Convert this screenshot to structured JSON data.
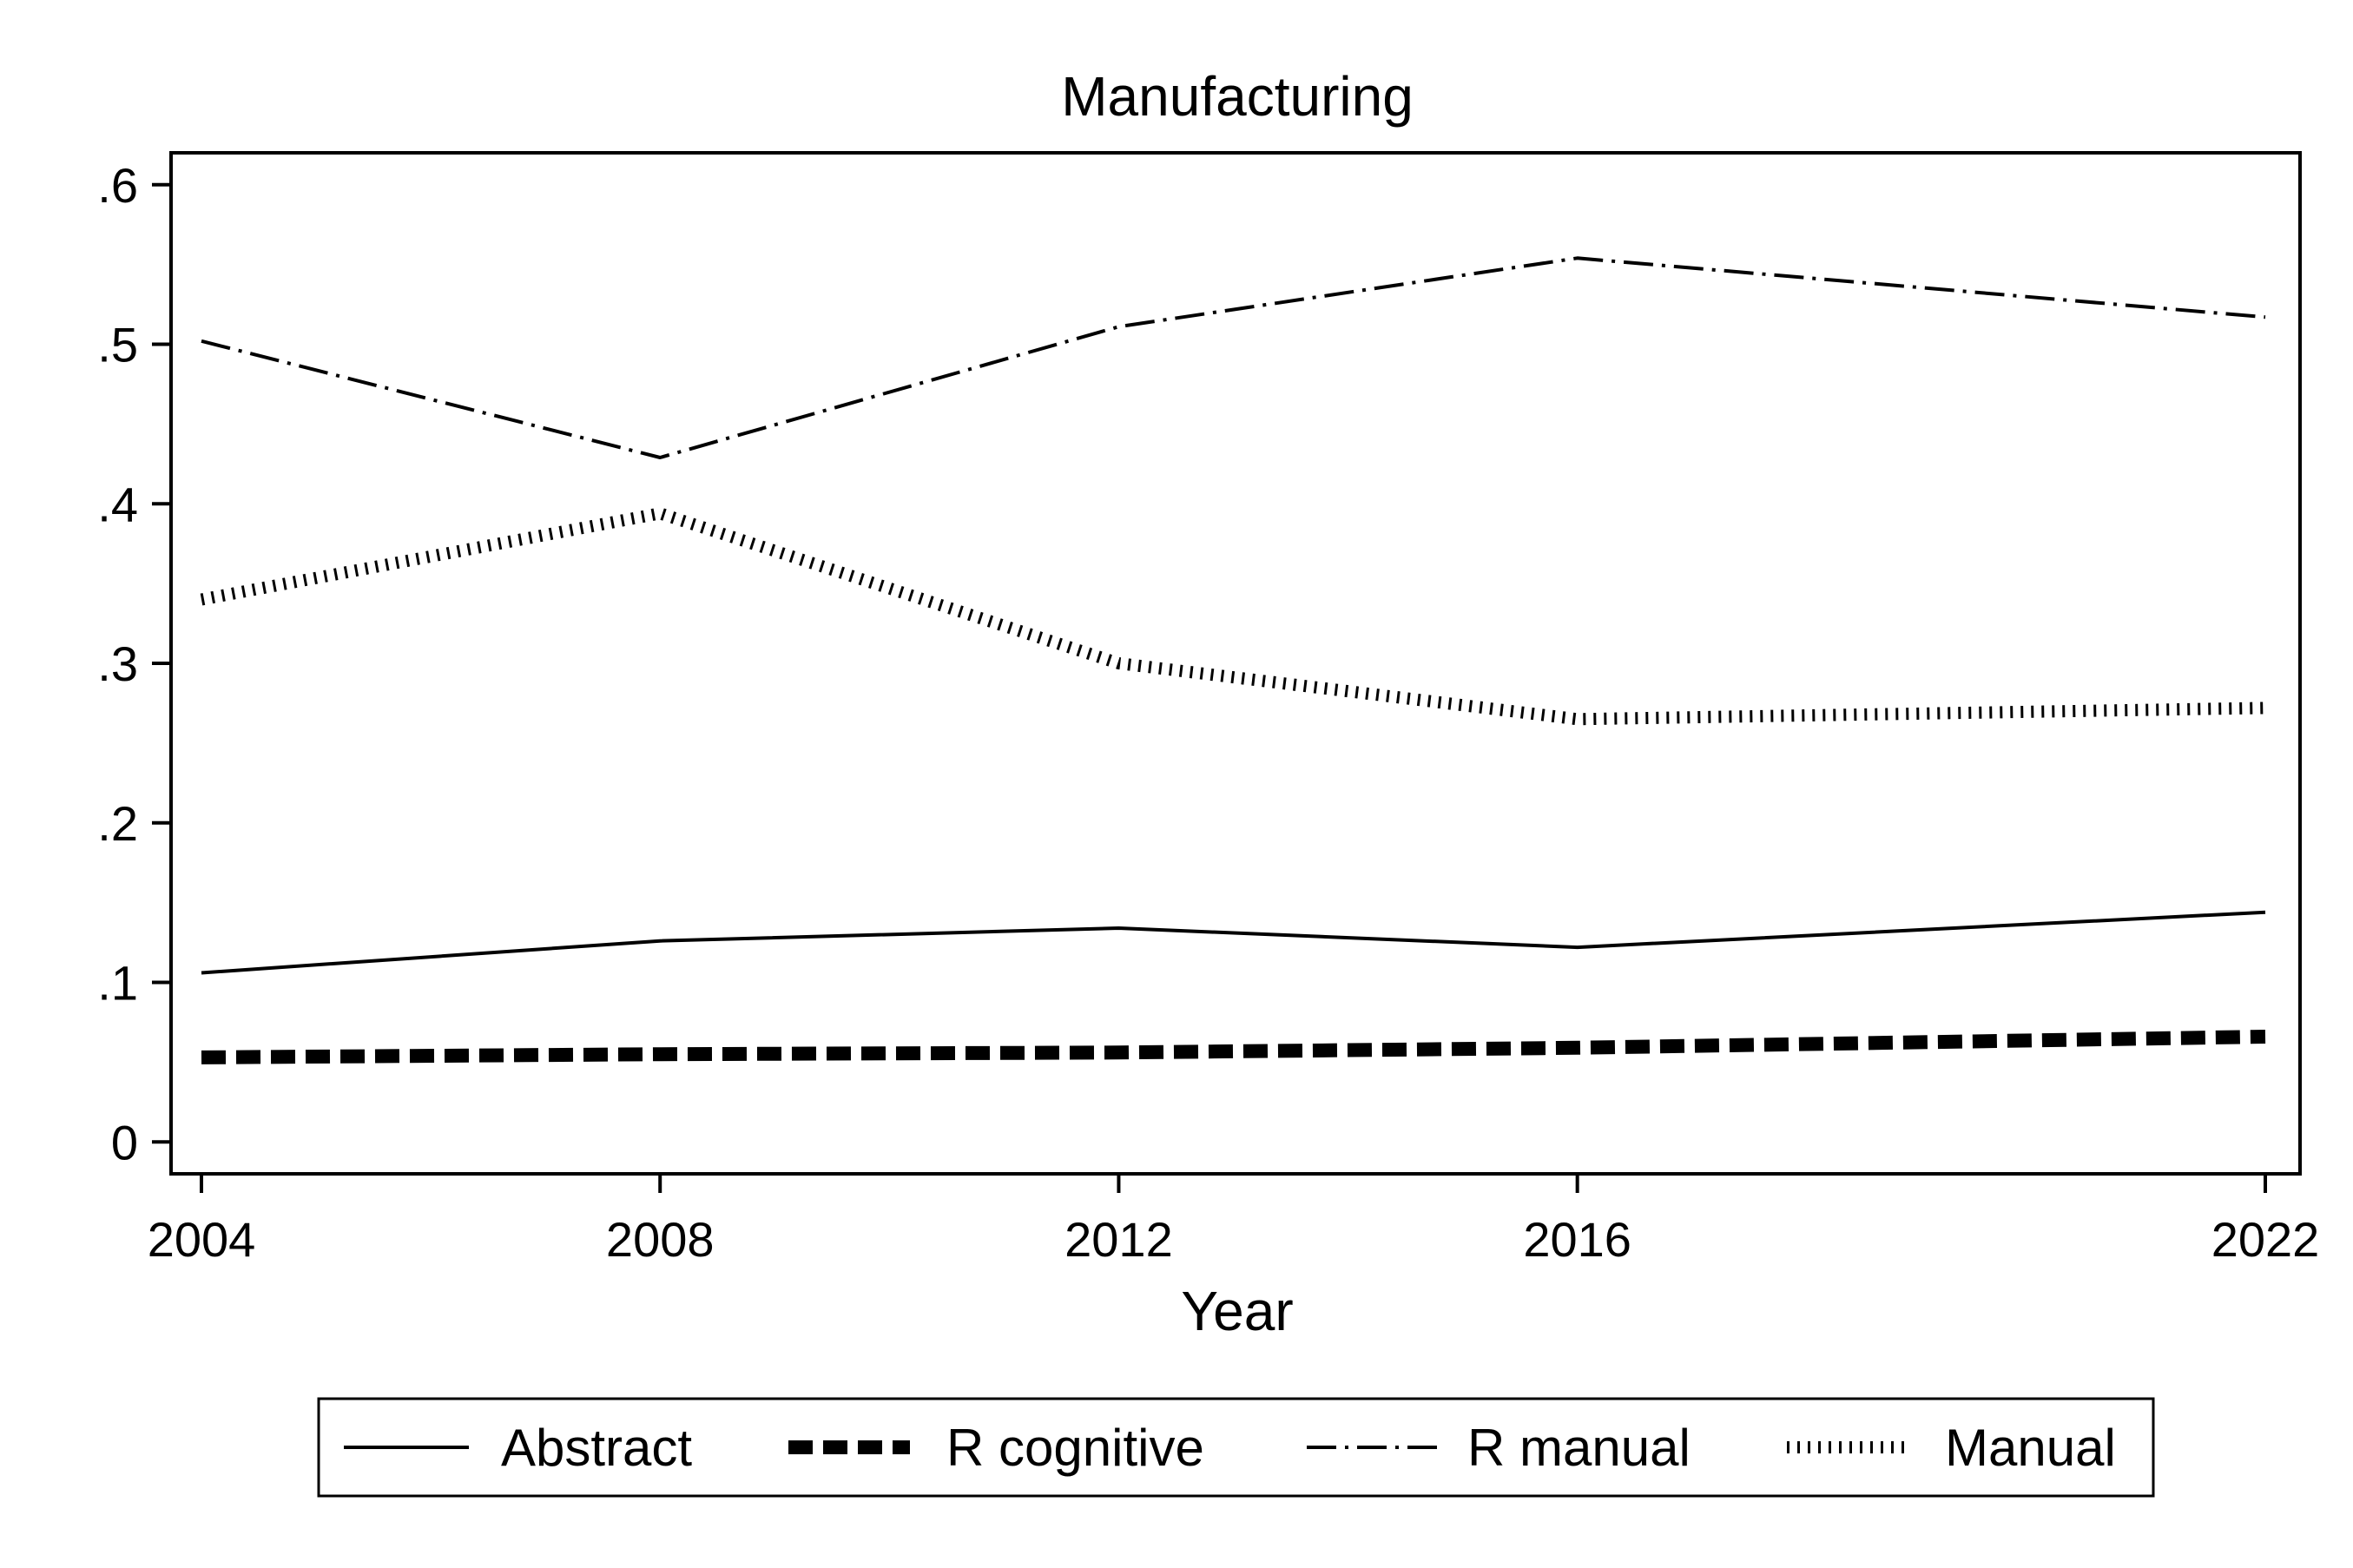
{
  "chart_data": {
    "type": "line",
    "title": "Manufacturing",
    "xlabel": "Year",
    "ylabel": "",
    "x": [
      2004,
      2008,
      2012,
      2016,
      2022
    ],
    "xticks": [
      "2004",
      "2008",
      "2012",
      "2016",
      "2022"
    ],
    "ylim": [
      -0.02,
      0.62
    ],
    "yticks": [
      {
        "value": 0,
        "label": "0"
      },
      {
        "value": 0.1,
        "label": ".1"
      },
      {
        "value": 0.2,
        "label": ".2"
      },
      {
        "value": 0.3,
        "label": ".3"
      },
      {
        "value": 0.4,
        "label": ".4"
      },
      {
        "value": 0.5,
        "label": ".5"
      },
      {
        "value": 0.6,
        "label": ".6"
      }
    ],
    "grid": false,
    "legend_position": "bottom",
    "series": [
      {
        "name": "Abstract",
        "style": "solid",
        "color": "#000000",
        "values": [
          0.106,
          0.126,
          0.134,
          0.122,
          0.144
        ]
      },
      {
        "name": "R cognitive",
        "style": "dashed",
        "color": "#000000",
        "values": [
          0.053,
          0.055,
          0.056,
          0.059,
          0.066
        ]
      },
      {
        "name": "R manual",
        "style": "dash-dot",
        "color": "#000000",
        "values": [
          0.502,
          0.429,
          0.511,
          0.554,
          0.517
        ]
      },
      {
        "name": "Manual",
        "style": "hatched",
        "color": "#000000",
        "values": [
          0.34,
          0.394,
          0.3,
          0.265,
          0.272
        ]
      }
    ]
  }
}
